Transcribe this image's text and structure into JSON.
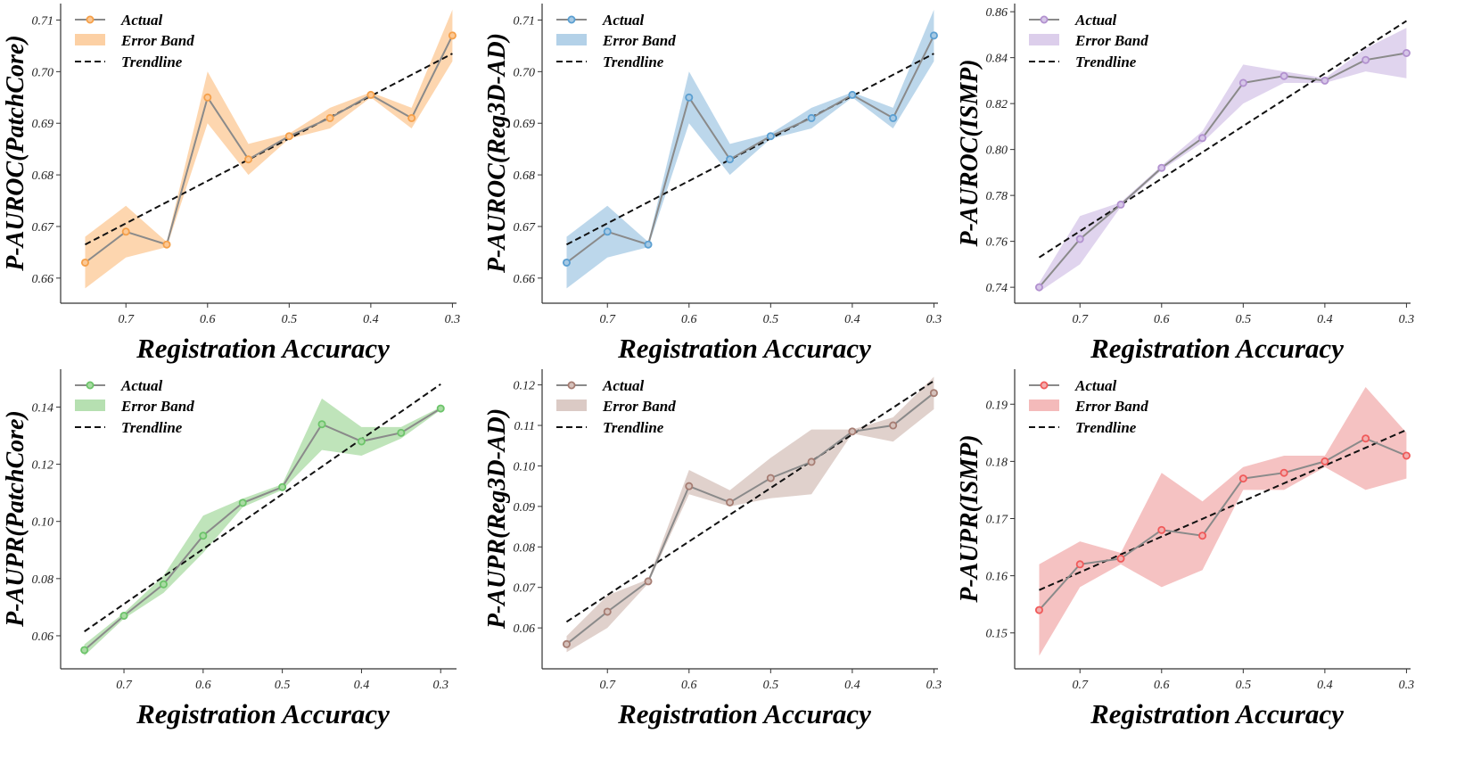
{
  "chart_data": [
    {
      "type": "line",
      "ylabel": "P-AUROC(PatchCore)",
      "xlabel": "Registration Accuracy",
      "x": [
        0.75,
        0.7,
        0.65,
        0.6,
        0.55,
        0.5,
        0.45,
        0.4,
        0.35,
        0.3
      ],
      "x_ticks": [
        "0.7",
        "0.6",
        "0.5",
        "0.4",
        "0.3"
      ],
      "x_tick_values": [
        0.7,
        0.6,
        0.5,
        0.4,
        0.3
      ],
      "xlim": [
        0.78,
        0.295
      ],
      "ylim": [
        0.656,
        0.7125
      ],
      "y_ticks": [
        "0.66",
        "0.67",
        "0.68",
        "0.69",
        "0.70",
        "0.71"
      ],
      "y_tick_values": [
        0.66,
        0.67,
        0.68,
        0.69,
        0.7,
        0.71
      ],
      "color": "#f5a04a",
      "band_color": "#fcc894",
      "legend": [
        "Actual",
        "Error Band",
        "Trendline"
      ],
      "series": [
        {
          "name": "Actual",
          "values": [
            0.663,
            0.669,
            0.6665,
            0.695,
            0.683,
            0.6875,
            0.691,
            0.6955,
            0.691,
            0.707
          ]
        },
        {
          "name": "Error Band",
          "lower": [
            0.658,
            0.664,
            0.666,
            0.69,
            0.68,
            0.687,
            0.689,
            0.695,
            0.689,
            0.702
          ],
          "upper": [
            0.668,
            0.674,
            0.667,
            0.7,
            0.686,
            0.688,
            0.693,
            0.696,
            0.693,
            0.712
          ]
        },
        {
          "name": "Trendline",
          "x": [
            0.75,
            0.3
          ],
          "values": [
            0.6665,
            0.7035
          ]
        }
      ]
    },
    {
      "type": "line",
      "ylabel": "P-AUROC(Reg3D-AD)",
      "xlabel": "Registration Accuracy",
      "x": [
        0.75,
        0.7,
        0.65,
        0.6,
        0.55,
        0.5,
        0.45,
        0.4,
        0.35,
        0.3
      ],
      "x_ticks": [
        "0.7",
        "0.6",
        "0.5",
        "0.4",
        "0.3"
      ],
      "x_tick_values": [
        0.7,
        0.6,
        0.5,
        0.4,
        0.3
      ],
      "xlim": [
        0.78,
        0.295
      ],
      "ylim": [
        0.656,
        0.7125
      ],
      "y_ticks": [
        "0.66",
        "0.67",
        "0.68",
        "0.69",
        "0.70",
        "0.71"
      ],
      "y_tick_values": [
        0.66,
        0.67,
        0.68,
        0.69,
        0.7,
        0.71
      ],
      "color": "#5b9fd1",
      "band_color": "#a6c9e4",
      "legend": [
        "Actual",
        "Error Band",
        "Trendline"
      ],
      "series": [
        {
          "name": "Actual",
          "values": [
            0.663,
            0.669,
            0.6665,
            0.695,
            0.683,
            0.6875,
            0.691,
            0.6955,
            0.691,
            0.707
          ]
        },
        {
          "name": "Error Band",
          "lower": [
            0.658,
            0.664,
            0.666,
            0.69,
            0.68,
            0.687,
            0.689,
            0.695,
            0.689,
            0.702
          ],
          "upper": [
            0.668,
            0.674,
            0.667,
            0.7,
            0.686,
            0.688,
            0.693,
            0.696,
            0.693,
            0.712
          ]
        },
        {
          "name": "Trendline",
          "x": [
            0.75,
            0.3
          ],
          "values": [
            0.6665,
            0.7035
          ]
        }
      ]
    },
    {
      "type": "line",
      "ylabel": "P-AUROC(ISMP)",
      "xlabel": "Registration Accuracy",
      "x": [
        0.75,
        0.7,
        0.65,
        0.6,
        0.55,
        0.5,
        0.45,
        0.4,
        0.35,
        0.3
      ],
      "x_ticks": [
        "0.7",
        "0.6",
        "0.5",
        "0.4",
        "0.3"
      ],
      "x_tick_values": [
        0.7,
        0.6,
        0.5,
        0.4,
        0.3
      ],
      "xlim": [
        0.78,
        0.295
      ],
      "ylim": [
        0.735,
        0.862
      ],
      "y_ticks": [
        "0.74",
        "0.76",
        "0.78",
        "0.80",
        "0.82",
        "0.84",
        "0.86"
      ],
      "y_tick_values": [
        0.74,
        0.76,
        0.78,
        0.8,
        0.82,
        0.84,
        0.86
      ],
      "color": "#b291cf",
      "band_color": "#d6c6e8",
      "legend": [
        "Actual",
        "Error Band",
        "Trendline"
      ],
      "series": [
        {
          "name": "Actual",
          "values": [
            0.74,
            0.761,
            0.776,
            0.792,
            0.805,
            0.829,
            0.832,
            0.83,
            0.839,
            0.842
          ]
        },
        {
          "name": "Error Band",
          "lower": [
            0.738,
            0.75,
            0.775,
            0.791,
            0.803,
            0.82,
            0.829,
            0.829,
            0.834,
            0.831
          ],
          "upper": [
            0.742,
            0.771,
            0.777,
            0.793,
            0.808,
            0.837,
            0.834,
            0.831,
            0.844,
            0.853
          ]
        },
        {
          "name": "Trendline",
          "x": [
            0.75,
            0.3
          ],
          "values": [
            0.753,
            0.856
          ]
        }
      ]
    },
    {
      "type": "line",
      "ylabel": "P-AUPR(PatchCore)",
      "xlabel": "Registration Accuracy",
      "x": [
        0.75,
        0.7,
        0.65,
        0.6,
        0.55,
        0.5,
        0.45,
        0.4,
        0.35,
        0.3
      ],
      "x_ticks": [
        "0.7",
        "0.6",
        "0.5",
        "0.4",
        "0.3"
      ],
      "x_tick_values": [
        0.7,
        0.6,
        0.5,
        0.4,
        0.3
      ],
      "xlim": [
        0.78,
        0.28
      ],
      "ylim": [
        0.05,
        0.152
      ],
      "y_ticks": [
        "0.06",
        "0.08",
        "0.10",
        "0.12",
        "0.14"
      ],
      "y_tick_values": [
        0.06,
        0.08,
        0.1,
        0.12,
        0.14
      ],
      "color": "#6cc46a",
      "band_color": "#a9dba3",
      "legend": [
        "Actual",
        "Error Band",
        "Trendline"
      ],
      "series": [
        {
          "name": "Actual",
          "values": [
            0.055,
            0.067,
            0.078,
            0.095,
            0.1065,
            0.112,
            0.134,
            0.128,
            0.131,
            0.1395
          ]
        },
        {
          "name": "Error Band",
          "lower": [
            0.053,
            0.066,
            0.075,
            0.089,
            0.105,
            0.111,
            0.125,
            0.123,
            0.129,
            0.139
          ],
          "upper": [
            0.057,
            0.068,
            0.081,
            0.102,
            0.108,
            0.113,
            0.143,
            0.133,
            0.133,
            0.14
          ]
        },
        {
          "name": "Trendline",
          "x": [
            0.75,
            0.3
          ],
          "values": [
            0.0615,
            0.148
          ]
        }
      ]
    },
    {
      "type": "line",
      "ylabel": "P-AUPR(Reg3D-AD)",
      "xlabel": "Registration Accuracy",
      "x": [
        0.75,
        0.7,
        0.65,
        0.6,
        0.55,
        0.5,
        0.45,
        0.4,
        0.35,
        0.3
      ],
      "x_ticks": [
        "0.7",
        "0.6",
        "0.5",
        "0.4",
        "0.3"
      ],
      "x_tick_values": [
        0.7,
        0.6,
        0.5,
        0.4,
        0.3
      ],
      "xlim": [
        0.78,
        0.295
      ],
      "ylim": [
        0.051,
        0.123
      ],
      "y_ticks": [
        "0.06",
        "0.07",
        "0.08",
        "0.09",
        "0.10",
        "0.11",
        "0.12"
      ],
      "y_tick_values": [
        0.06,
        0.07,
        0.08,
        0.09,
        0.1,
        0.11,
        0.12
      ],
      "color": "#a67d73",
      "band_color": "#d5c1bb",
      "legend": [
        "Actual",
        "Error Band",
        "Trendline"
      ],
      "series": [
        {
          "name": "Actual",
          "values": [
            0.056,
            0.064,
            0.0715,
            0.095,
            0.091,
            0.097,
            0.101,
            0.1085,
            0.11,
            0.118
          ]
        },
        {
          "name": "Error Band",
          "lower": [
            0.054,
            0.06,
            0.071,
            0.093,
            0.09,
            0.092,
            0.093,
            0.108,
            0.106,
            0.114
          ],
          "upper": [
            0.058,
            0.068,
            0.072,
            0.099,
            0.094,
            0.102,
            0.109,
            0.109,
            0.112,
            0.122
          ]
        },
        {
          "name": "Trendline",
          "x": [
            0.75,
            0.3
          ],
          "values": [
            0.0615,
            0.121
          ]
        }
      ]
    },
    {
      "type": "line",
      "ylabel": "P-AUPR(ISMP)",
      "xlabel": "Registration Accuracy",
      "x": [
        0.75,
        0.7,
        0.65,
        0.6,
        0.55,
        0.5,
        0.45,
        0.4,
        0.35,
        0.3
      ],
      "x_ticks": [
        "0.7",
        "0.6",
        "0.5",
        "0.4",
        "0.3"
      ],
      "x_tick_values": [
        0.7,
        0.6,
        0.5,
        0.4,
        0.3
      ],
      "xlim": [
        0.78,
        0.295
      ],
      "ylim": [
        0.1445,
        0.1955
      ],
      "y_ticks": [
        "0.15",
        "0.16",
        "0.17",
        "0.18",
        "0.19"
      ],
      "y_tick_values": [
        0.15,
        0.16,
        0.17,
        0.18,
        0.19
      ],
      "color": "#f05a5a",
      "band_color": "#f2aeae",
      "legend": [
        "Actual",
        "Error Band",
        "Trendline"
      ],
      "series": [
        {
          "name": "Actual",
          "values": [
            0.154,
            0.162,
            0.163,
            0.168,
            0.167,
            0.177,
            0.178,
            0.18,
            0.184,
            0.181
          ]
        },
        {
          "name": "Error Band",
          "lower": [
            0.146,
            0.158,
            0.162,
            0.158,
            0.161,
            0.175,
            0.175,
            0.179,
            0.175,
            0.177
          ],
          "upper": [
            0.162,
            0.166,
            0.164,
            0.178,
            0.173,
            0.179,
            0.181,
            0.181,
            0.193,
            0.185
          ]
        },
        {
          "name": "Trendline",
          "x": [
            0.75,
            0.3
          ],
          "values": [
            0.1575,
            0.1855
          ]
        }
      ]
    }
  ]
}
